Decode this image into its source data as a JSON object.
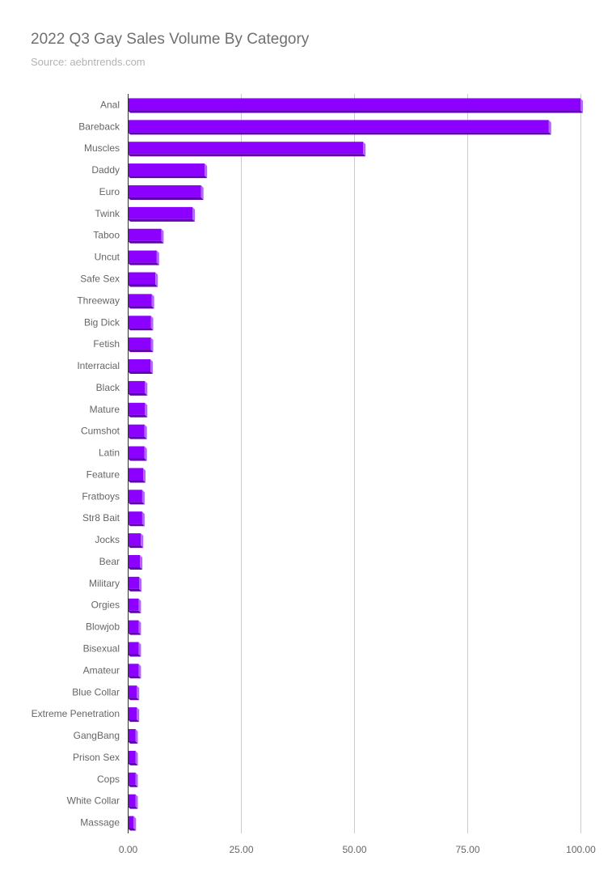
{
  "chart_data": {
    "type": "bar",
    "orientation": "horizontal",
    "title": "2022 Q3 Gay Sales Volume By Category",
    "subtitle": "Source: aebntrends.com",
    "xlabel": "",
    "ylabel": "",
    "xlim": [
      0,
      100
    ],
    "xticks": [
      "0.00",
      "25.00",
      "50.00",
      "75.00",
      "100.00"
    ],
    "grid": true,
    "legend": "none",
    "bar_color": "#8c00ff",
    "bar_shade_color": "#5e00ad",
    "bar_side_color": "#b366ff",
    "categories": [
      "Anal",
      "Bareback",
      "Muscles",
      "Daddy",
      "Euro",
      "Twink",
      "Taboo",
      "Uncut",
      "Safe Sex",
      "Threeway",
      "Big Dick",
      "Fetish",
      "Interracial",
      "Black",
      "Mature",
      "Cumshot",
      "Latin",
      "Feature",
      "Fratboys",
      "Str8 Bait",
      "Jocks",
      "Bear",
      "Military",
      "Orgies",
      "Blowjob",
      "Bisexual",
      "Amateur",
      "Blue Collar",
      "Extreme Penetration",
      "GangBang",
      "Prison Sex",
      "Cops",
      "White Collar",
      "Massage"
    ],
    "values": [
      100,
      93,
      52,
      17,
      16.2,
      14.3,
      7.4,
      6.4,
      6.1,
      5.3,
      5.1,
      5.1,
      5,
      3.8,
      3.8,
      3.7,
      3.7,
      3.4,
      3.2,
      3.2,
      2.9,
      2.7,
      2.5,
      2.4,
      2.4,
      2.4,
      2.4,
      2,
      2,
      1.7,
      1.7,
      1.7,
      1.7,
      1.3
    ]
  }
}
